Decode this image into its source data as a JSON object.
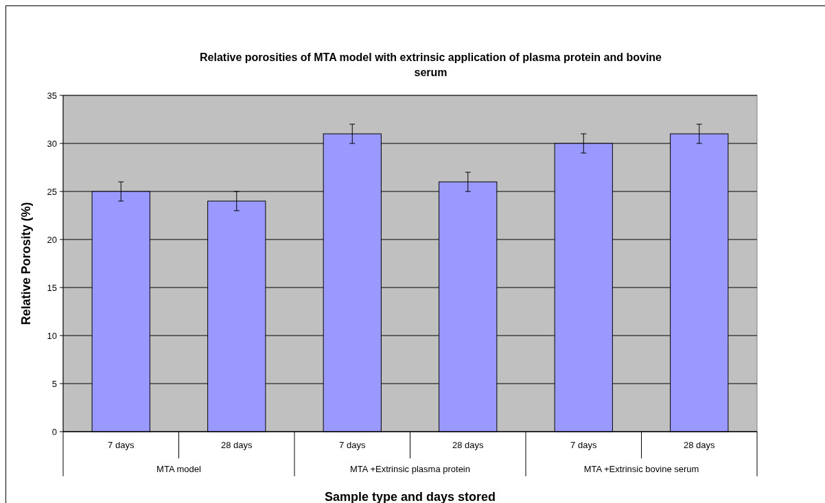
{
  "chart_data": {
    "type": "bar",
    "title": "Relative porosities of MTA model with extrinsic application of plasma protein and bovine serum",
    "xlabel": "Sample type and days stored",
    "ylabel": "Relative Porosity  (%)",
    "categories": [
      "7 days",
      "28 days",
      "7 days",
      "28 days",
      "7 days",
      "28 days"
    ],
    "values": [
      25,
      24,
      31,
      26,
      30,
      31
    ],
    "errors": [
      1,
      1,
      1,
      1,
      1,
      1
    ],
    "color": "#9999ff",
    "ylim": [
      0,
      35
    ],
    "yticks": [
      0,
      5,
      10,
      15,
      20,
      25,
      30,
      35
    ],
    "grid": "y",
    "annotations": [
      "MTA model",
      "MTA +Extrinsic plasma protein",
      "MTA +Extrinsic bovine serum"
    ]
  }
}
